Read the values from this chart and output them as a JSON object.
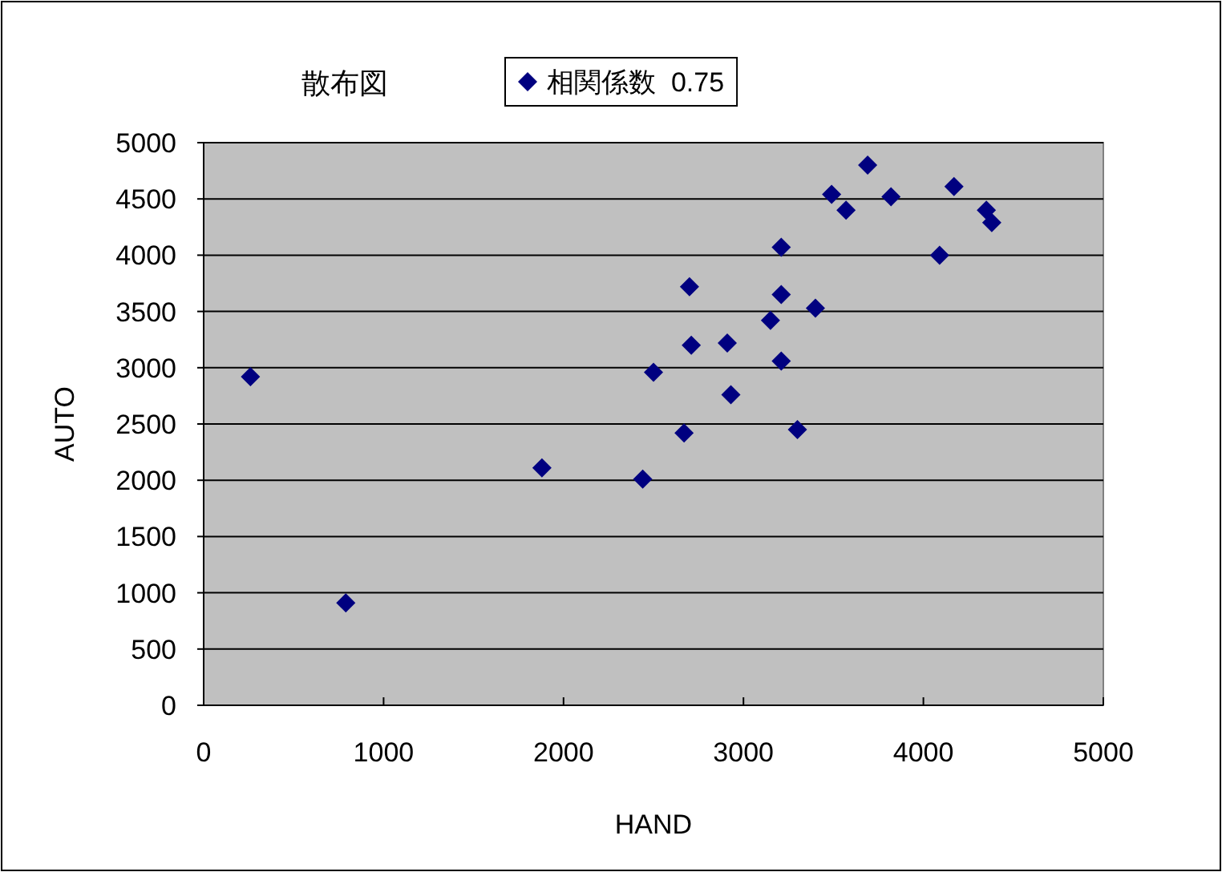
{
  "chart_data": {
    "type": "scatter",
    "title": "散布図",
    "xlabel": "HAND",
    "ylabel": "AUTO",
    "xlim": [
      0,
      5000
    ],
    "xticks": [
      0,
      1000,
      2000,
      3000,
      4000,
      5000
    ],
    "ylim": [
      0,
      5000
    ],
    "yticks": [
      0,
      500,
      1000,
      1500,
      2000,
      2500,
      3000,
      3500,
      4000,
      4500,
      5000
    ],
    "grid": "y",
    "legend": "top",
    "marker": "diamond",
    "series": [
      {
        "name": "相関係数  0.75",
        "color": "#000080",
        "x": [
          260,
          790,
          1880,
          2440,
          2670,
          2700,
          2710,
          2500,
          2910,
          2930,
          3150,
          3210,
          3210,
          3210,
          3300,
          3400,
          3490,
          3570,
          3690,
          3820,
          4090,
          4170,
          4350,
          4380
        ],
        "values": [
          2920,
          910,
          2110,
          2010,
          2420,
          3720,
          3200,
          2960,
          3220,
          2760,
          3420,
          4070,
          3650,
          3060,
          2450,
          3530,
          4540,
          4400,
          4800,
          4520,
          4000,
          4610,
          4400,
          4290
        ]
      }
    ]
  }
}
